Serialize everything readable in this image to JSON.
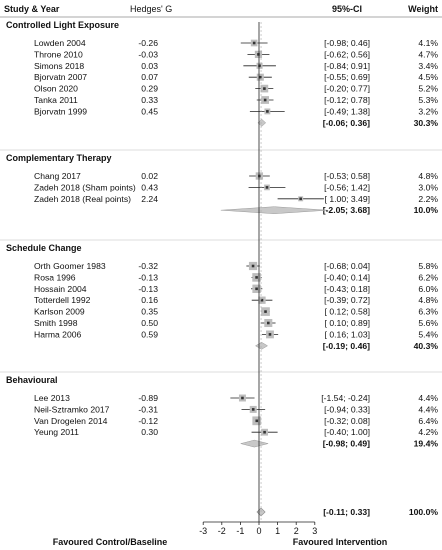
{
  "header": {
    "study": "Study & Year",
    "effect": "Hedges' G",
    "ci": "95%-CI",
    "weight": "Weight"
  },
  "chart_data": {
    "type": "forest",
    "xlim": [
      -3,
      3
    ],
    "ticks": [
      "-3",
      "-2",
      "-1",
      "0",
      "1",
      "2",
      "3"
    ],
    "xlabel_left": "Favoured Control/Baseline",
    "xlabel_right": "Favoured Intervention",
    "groups": [
      {
        "name": "Controlled Light Exposure",
        "studies": [
          {
            "study": "Lowden 2004",
            "g": "-0.26",
            "ci": "[-0.98; 0.46]",
            "weight": "4.1%",
            "g_val": -0.26,
            "lo": -0.98,
            "hi": 0.46,
            "w": 4.1
          },
          {
            "study": "Throne 2010",
            "g": "-0.03",
            "ci": "[-0.62; 0.56]",
            "weight": "4.7%",
            "g_val": -0.03,
            "lo": -0.62,
            "hi": 0.56,
            "w": 4.7
          },
          {
            "study": "Simons 2018",
            "g": "0.03",
            "ci": "[-0.84; 0.91]",
            "weight": "3.4%",
            "g_val": 0.03,
            "lo": -0.84,
            "hi": 0.91,
            "w": 3.4
          },
          {
            "study": "Bjorvatn 2007",
            "g": "0.07",
            "ci": "[-0.55; 0.69]",
            "weight": "4.5%",
            "g_val": 0.07,
            "lo": -0.55,
            "hi": 0.69,
            "w": 4.5
          },
          {
            "study": "Olson 2020",
            "g": "0.29",
            "ci": "[-0.20; 0.77]",
            "weight": "5.2%",
            "g_val": 0.29,
            "lo": -0.2,
            "hi": 0.77,
            "w": 5.2
          },
          {
            "study": "Tanka 2011",
            "g": "0.33",
            "ci": "[-0.12; 0.78]",
            "weight": "5.3%",
            "g_val": 0.33,
            "lo": -0.12,
            "hi": 0.78,
            "w": 5.3
          },
          {
            "study": "Bjorvatn 1999",
            "g": "0.45",
            "ci": "[-0.49; 1.38]",
            "weight": "3.2%",
            "g_val": 0.45,
            "lo": -0.49,
            "hi": 1.38,
            "w": 3.2
          }
        ],
        "summary": {
          "ci": "[-0.06; 0.36]",
          "weight": "30.3%",
          "g_val": 0.15,
          "lo": -0.06,
          "hi": 0.36
        }
      },
      {
        "name": "Complementary Therapy",
        "studies": [
          {
            "study": "Chang 2017",
            "g": "0.02",
            "ci": "[-0.53; 0.58]",
            "weight": "4.8%",
            "g_val": 0.02,
            "lo": -0.53,
            "hi": 0.58,
            "w": 4.8
          },
          {
            "study": "Zadeh 2018 (Sham points)",
            "g": "0.43",
            "ci": "[-0.56; 1.42]",
            "weight": "3.0%",
            "g_val": 0.43,
            "lo": -0.56,
            "hi": 1.42,
            "w": 3.0
          },
          {
            "study": "Zadeh 2018 (Real points)",
            "g": "2.24",
            "ci": "[ 1.00; 3.49]",
            "weight": "2.2%",
            "g_val": 2.24,
            "lo": 1.0,
            "hi": 3.49,
            "w": 2.2
          }
        ],
        "summary": {
          "ci": "[-2.05; 3.68]",
          "weight": "10.0%",
          "g_val": 0.82,
          "lo": -2.05,
          "hi": 3.68
        }
      },
      {
        "name": "Schedule Change",
        "studies": [
          {
            "study": "Orth Goomer 1983",
            "g": "-0.32",
            "ci": "[-0.68; 0.04]",
            "weight": "5.8%",
            "g_val": -0.32,
            "lo": -0.68,
            "hi": 0.04,
            "w": 5.8
          },
          {
            "study": "Rosa 1996",
            "g": "-0.13",
            "ci": "[-0.40; 0.14]",
            "weight": "6.2%",
            "g_val": -0.13,
            "lo": -0.4,
            "hi": 0.14,
            "w": 6.2
          },
          {
            "study": "Hossain 2004",
            "g": "-0.13",
            "ci": "[-0.43; 0.18]",
            "weight": "6.0%",
            "g_val": -0.13,
            "lo": -0.43,
            "hi": 0.18,
            "w": 6.0
          },
          {
            "study": "Totterdell 1992",
            "g": "0.16",
            "ci": "[-0.39; 0.72]",
            "weight": "4.8%",
            "g_val": 0.16,
            "lo": -0.39,
            "hi": 0.72,
            "w": 4.8
          },
          {
            "study": "Karlson 2009",
            "g": "0.35",
            "ci": "[ 0.12; 0.58]",
            "weight": "6.3%",
            "g_val": 0.35,
            "lo": 0.12,
            "hi": 0.58,
            "w": 6.3
          },
          {
            "study": "Smith 1998",
            "g": "0.50",
            "ci": "[ 0.10; 0.89]",
            "weight": "5.6%",
            "g_val": 0.5,
            "lo": 0.1,
            "hi": 0.89,
            "w": 5.6
          },
          {
            "study": "Harma 2006",
            "g": "0.59",
            "ci": "[ 0.16; 1.03]",
            "weight": "5.4%",
            "g_val": 0.59,
            "lo": 0.16,
            "hi": 1.03,
            "w": 5.4
          }
        ],
        "summary": {
          "ci": "[-0.19; 0.46]",
          "weight": "40.3%",
          "g_val": 0.14,
          "lo": -0.19,
          "hi": 0.46
        }
      },
      {
        "name": "Behavioural",
        "studies": [
          {
            "study": "Lee 2013",
            "g": "-0.89",
            "ci": "[-1.54; -0.24]",
            "weight": "4.4%",
            "g_val": -0.89,
            "lo": -1.54,
            "hi": -0.24,
            "w": 4.4
          },
          {
            "study": "Neil-Sztramko 2017",
            "g": "-0.31",
            "ci": "[-0.94; 0.33]",
            "weight": "4.4%",
            "g_val": -0.31,
            "lo": -0.94,
            "hi": 0.33,
            "w": 4.4
          },
          {
            "study": "Van Drogelen 2014",
            "g": "-0.12",
            "ci": "[-0.32; 0.08]",
            "weight": "6.4%",
            "g_val": -0.12,
            "lo": -0.32,
            "hi": 0.08,
            "w": 6.4
          },
          {
            "study": "Yeung 2011",
            "g": "0.30",
            "ci": "[-0.40; 1.00]",
            "weight": "4.2%",
            "g_val": 0.3,
            "lo": -0.4,
            "hi": 1.0,
            "w": 4.2
          }
        ],
        "summary": {
          "ci": "[-0.98; 0.49]",
          "weight": "19.4%",
          "g_val": -0.25,
          "lo": -0.98,
          "hi": 0.49
        }
      }
    ],
    "overall": {
      "ci": "[-0.11; 0.33]",
      "weight": "100.0%",
      "g_val": 0.11,
      "lo": -0.11,
      "hi": 0.33
    }
  }
}
